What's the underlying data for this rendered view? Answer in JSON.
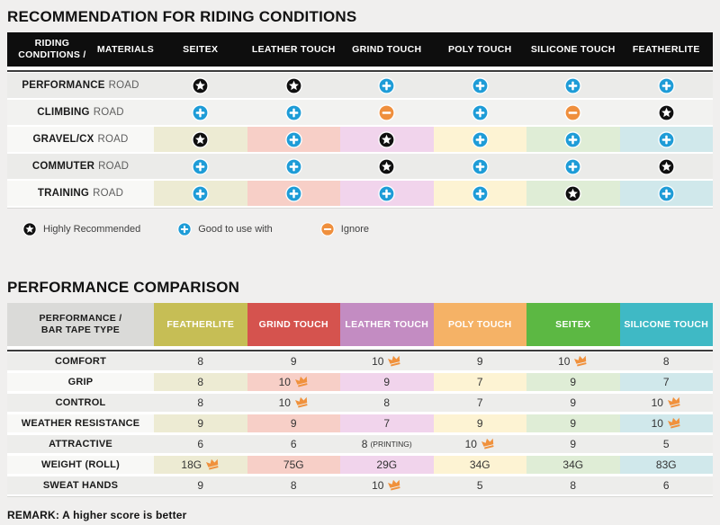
{
  "section1": {
    "title": "RECOMMENDATION FOR RIDING CONDITIONS",
    "header": {
      "label_line1": "RIDING CONDITIONS /",
      "label_line2": "MATERIALS",
      "columns": [
        "SEITEX",
        "LEATHER TOUCH",
        "GRIND TOUCH",
        "POLY TOUCH",
        "SILICONE TOUCH",
        "FEATHERLITE"
      ]
    },
    "rows": [
      {
        "label_bold": "PERFORMANCE",
        "label_rest": "ROAD",
        "tinted": false,
        "cells": [
          "star",
          "star",
          "plus",
          "plus",
          "plus",
          "plus"
        ]
      },
      {
        "label_bold": "CLIMBING",
        "label_rest": "ROAD",
        "tinted": false,
        "cells": [
          "plus",
          "plus",
          "minus",
          "plus",
          "minus",
          "star"
        ]
      },
      {
        "label_bold": "GRAVEL/CX",
        "label_rest": "ROAD",
        "tinted": true,
        "cells": [
          "star",
          "plus",
          "star",
          "plus",
          "plus",
          "plus"
        ]
      },
      {
        "label_bold": "COMMUTER",
        "label_rest": "ROAD",
        "tinted": false,
        "cells": [
          "plus",
          "plus",
          "star",
          "plus",
          "plus",
          "star"
        ]
      },
      {
        "label_bold": "TRAINING",
        "label_rest": "ROAD",
        "tinted": true,
        "cells": [
          "plus",
          "plus",
          "plus",
          "plus",
          "star",
          "plus"
        ]
      }
    ],
    "legend": [
      {
        "icon": "star",
        "label": "Highly Recommended"
      },
      {
        "icon": "plus",
        "label": "Good to use with"
      },
      {
        "icon": "minus",
        "label": "Ignore"
      }
    ]
  },
  "section2": {
    "title": "PERFORMANCE COMPARISON",
    "header": {
      "label_line1": "PERFORMANCE /",
      "label_line2": "BAR TAPE TYPE",
      "columns": [
        {
          "label": "FEATHERLITE",
          "color": "#C6BE55"
        },
        {
          "label": "GRIND TOUCH",
          "color": "#D5534E"
        },
        {
          "label": "LEATHER TOUCH",
          "color": "#C38CC2"
        },
        {
          "label": "POLY TOUCH",
          "color": "#F5B266"
        },
        {
          "label": "SEITEX",
          "color": "#5CB843"
        },
        {
          "label": "SILICONE TOUCH",
          "color": "#3FB9C5"
        }
      ]
    },
    "rows": [
      {
        "label": "COMFORT",
        "tinted": false,
        "cells": [
          {
            "value": "8"
          },
          {
            "value": "9"
          },
          {
            "value": "10",
            "crown": true
          },
          {
            "value": "9"
          },
          {
            "value": "10",
            "crown": true
          },
          {
            "value": "8"
          }
        ]
      },
      {
        "label": "GRIP",
        "tinted": true,
        "cells": [
          {
            "value": "8"
          },
          {
            "value": "10",
            "crown": true
          },
          {
            "value": "9"
          },
          {
            "value": "7"
          },
          {
            "value": "9"
          },
          {
            "value": "7"
          }
        ]
      },
      {
        "label": "CONTROL",
        "tinted": false,
        "cells": [
          {
            "value": "8"
          },
          {
            "value": "10",
            "crown": true
          },
          {
            "value": "8"
          },
          {
            "value": "7"
          },
          {
            "value": "9"
          },
          {
            "value": "10",
            "crown": true
          }
        ]
      },
      {
        "label": "WEATHER RESISTANCE",
        "tinted": true,
        "cells": [
          {
            "value": "9"
          },
          {
            "value": "9"
          },
          {
            "value": "7"
          },
          {
            "value": "9"
          },
          {
            "value": "9"
          },
          {
            "value": "10",
            "crown": true
          }
        ]
      },
      {
        "label": "ATTRACTIVE",
        "tinted": false,
        "cells": [
          {
            "value": "6"
          },
          {
            "value": "6"
          },
          {
            "value": "8",
            "note": "(PRINTING)"
          },
          {
            "value": "10",
            "crown": true
          },
          {
            "value": "9"
          },
          {
            "value": "5"
          }
        ]
      },
      {
        "label": "WEIGHT (ROLL)",
        "tinted": true,
        "cells": [
          {
            "value": "18G",
            "crown": true
          },
          {
            "value": "75G"
          },
          {
            "value": "29G"
          },
          {
            "value": "34G"
          },
          {
            "value": "34G"
          },
          {
            "value": "83G"
          }
        ]
      },
      {
        "label": "SWEAT HANDS",
        "tinted": false,
        "cells": [
          {
            "value": "9"
          },
          {
            "value": "8"
          },
          {
            "value": "10",
            "crown": true
          },
          {
            "value": "5"
          },
          {
            "value": "8"
          },
          {
            "value": "6"
          }
        ]
      }
    ],
    "remark": "REMARK: A higher score is better"
  },
  "colors": {
    "page_bg": "#F0EFEE",
    "header_black": "#0E0E0E",
    "row_gray_a": "#EBEBE9",
    "row_gray_b": "#F2F2F0",
    "row_gray_t2": "#EDEDEB",
    "label_cell_light": "#F8F8F6",
    "tints": [
      "#EDEBD3",
      "#F7CFC7",
      "#F1D4EC",
      "#FDF3D3",
      "#DFEDD6",
      "#D0E8EB"
    ],
    "icon_star": "#101010",
    "icon_plus": "#1E9CD7",
    "icon_minus": "#EF8F3D",
    "crown": "#F0913C"
  },
  "chart_data": [
    {
      "type": "table",
      "title": "RECOMMENDATION FOR RIDING CONDITIONS",
      "columns": [
        "RIDING CONDITIONS / MATERIALS",
        "SEITEX",
        "LEATHER TOUCH",
        "GRIND TOUCH",
        "POLY TOUCH",
        "SILICONE TOUCH",
        "FEATHERLITE"
      ],
      "rows": [
        [
          "PERFORMANCE ROAD",
          "highly-recommended",
          "highly-recommended",
          "good-to-use-with",
          "good-to-use-with",
          "good-to-use-with",
          "good-to-use-with"
        ],
        [
          "CLIMBING ROAD",
          "good-to-use-with",
          "good-to-use-with",
          "ignore",
          "good-to-use-with",
          "ignore",
          "highly-recommended"
        ],
        [
          "GRAVEL/CX ROAD",
          "highly-recommended",
          "good-to-use-with",
          "highly-recommended",
          "good-to-use-with",
          "good-to-use-with",
          "good-to-use-with"
        ],
        [
          "COMMUTER ROAD",
          "good-to-use-with",
          "good-to-use-with",
          "highly-recommended",
          "good-to-use-with",
          "good-to-use-with",
          "highly-recommended"
        ],
        [
          "TRAINING ROAD",
          "good-to-use-with",
          "good-to-use-with",
          "good-to-use-with",
          "good-to-use-with",
          "highly-recommended",
          "good-to-use-with"
        ]
      ],
      "legend": [
        {
          "symbol": "black-star",
          "meaning": "Highly Recommended"
        },
        {
          "symbol": "blue-plus",
          "meaning": "Good to use with"
        },
        {
          "symbol": "orange-minus",
          "meaning": "Ignore"
        }
      ]
    },
    {
      "type": "table",
      "title": "PERFORMANCE COMPARISON",
      "columns": [
        "PERFORMANCE / BAR TAPE TYPE",
        "FEATHERLITE",
        "GRIND TOUCH",
        "LEATHER TOUCH",
        "POLY TOUCH",
        "SEITEX",
        "SILICONE TOUCH"
      ],
      "rows": [
        [
          "COMFORT",
          "8",
          "9",
          "10 (best)",
          "9",
          "10 (best)",
          "8"
        ],
        [
          "GRIP",
          "8",
          "10 (best)",
          "9",
          "7",
          "9",
          "7"
        ],
        [
          "CONTROL",
          "8",
          "10 (best)",
          "8",
          "7",
          "9",
          "10 (best)"
        ],
        [
          "WEATHER RESISTANCE",
          "9",
          "9",
          "7",
          "9",
          "9",
          "10 (best)"
        ],
        [
          "ATTRACTIVE",
          "6",
          "6",
          "8 (PRINTING)",
          "10 (best)",
          "9",
          "5"
        ],
        [
          "WEIGHT (ROLL)",
          "18G (best)",
          "75G",
          "29G",
          "34G",
          "34G",
          "83G"
        ],
        [
          "SWEAT HANDS",
          "9",
          "8",
          "10 (best)",
          "5",
          "8",
          "6"
        ]
      ],
      "note": "REMARK: A higher score is better"
    }
  ]
}
